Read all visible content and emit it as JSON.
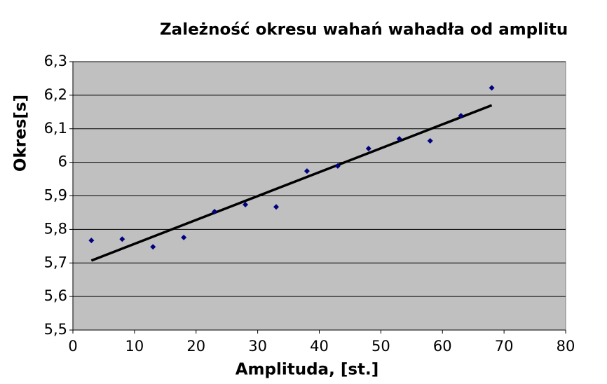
{
  "chart_data": {
    "type": "scatter",
    "title": "Zależność okresu wahań wahadła od amplitu",
    "x_label": "Amplituda, [st.]",
    "y_label": "Okres[s]",
    "series": [
      {
        "name": "Okres",
        "color": "#000080",
        "x": [
          3,
          8,
          13,
          18,
          23,
          28,
          33,
          38,
          43,
          48,
          53,
          58,
          63,
          68
        ],
        "values": [
          5.767,
          5.771,
          5.748,
          5.776,
          5.853,
          5.874,
          5.867,
          5.974,
          5.989,
          6.041,
          6.07,
          6.064,
          6.139,
          6.222
        ]
      }
    ],
    "trendline": {
      "color": "#000000",
      "x": [
        3,
        68
      ],
      "values": [
        5.707,
        6.17
      ]
    },
    "xlim": [
      0,
      80
    ],
    "xticks": [
      0,
      10,
      20,
      30,
      40,
      50,
      60,
      70,
      80
    ],
    "ylim": [
      5.5,
      6.3
    ],
    "yticks": [
      {
        "value": 5.5,
        "label": "5,5"
      },
      {
        "value": 5.6,
        "label": "5,6"
      },
      {
        "value": 5.7,
        "label": "5,7"
      },
      {
        "value": 5.8,
        "label": "5,8"
      },
      {
        "value": 5.9,
        "label": "5,9"
      },
      6,
      {
        "value": 6.1,
        "label": "6,1"
      },
      {
        "value": 6.2,
        "label": "6,2"
      },
      {
        "value": 6.3,
        "label": "6,3"
      }
    ],
    "grid": true
  }
}
